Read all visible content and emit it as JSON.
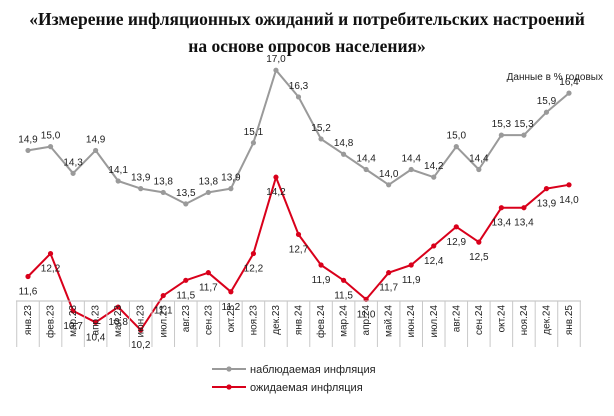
{
  "title": {
    "line1": "«Измерение инфляционных ожиданий и потребительских настроений",
    "line2": "на основе опросов населения»"
  },
  "units_note": "Данные в % годовых",
  "chart_data": {
    "type": "line",
    "categories": [
      "янв.23",
      "фев.23",
      "мар.23",
      "апр.23",
      "май.23",
      "июн.23",
      "июл.23",
      "авг.23",
      "сен.23",
      "окт.23",
      "ноя.23",
      "дек.23",
      "янв.24",
      "фев.24",
      "мар.24",
      "апр.24",
      "май.24",
      "июн.24",
      "июл.24",
      "авг.24",
      "сен.24",
      "окт.24",
      "ноя.24",
      "дек.24",
      "янв.25"
    ],
    "series": [
      {
        "name": "наблюдаемая инфляция",
        "color": "#9a9a9a",
        "values": [
          14.9,
          15.0,
          14.3,
          14.9,
          14.1,
          13.9,
          13.8,
          13.5,
          13.8,
          13.9,
          15.1,
          17.0,
          16.3,
          15.2,
          14.8,
          14.4,
          14.0,
          14.4,
          14.2,
          15.0,
          14.4,
          15.3,
          15.3,
          15.9,
          16.4
        ],
        "labels": [
          "14,9",
          "15,0",
          "14,3",
          "14,9",
          "14,1",
          "13,9",
          "13,8",
          "13,5",
          "13,8",
          "13,9",
          "15,1",
          "17,0",
          "16,3",
          "15,2",
          "14,8",
          "14,4",
          "14,0",
          "14,4",
          "14,2",
          "15,0",
          "14,4",
          "15,3",
          "15,3",
          "15,9",
          "16,4"
        ]
      },
      {
        "name": "ожидаемая инфляция",
        "color": "#d9001b",
        "values": [
          11.6,
          12.2,
          10.7,
          10.4,
          10.8,
          10.2,
          11.1,
          11.5,
          11.7,
          11.2,
          12.2,
          14.2,
          12.7,
          11.9,
          11.5,
          11.0,
          11.7,
          11.9,
          12.4,
          12.9,
          12.5,
          13.4,
          13.4,
          13.9,
          14.0
        ],
        "labels": [
          "11,6",
          "12,2",
          "10,7",
          "10,4",
          "10,8",
          "10,2",
          "11,1",
          "11,5",
          "11,7",
          "11,2",
          "12,2",
          "14,2",
          "12,7",
          "11,9",
          "11,5",
          "11,0",
          "11,7",
          "11,9",
          "12,4",
          "12,9",
          "12,5",
          "13,4",
          "13,4",
          "13,9",
          "14,0"
        ]
      }
    ],
    "ylim": [
      8,
      18
    ],
    "grid": false,
    "legend_position": "bottom"
  }
}
